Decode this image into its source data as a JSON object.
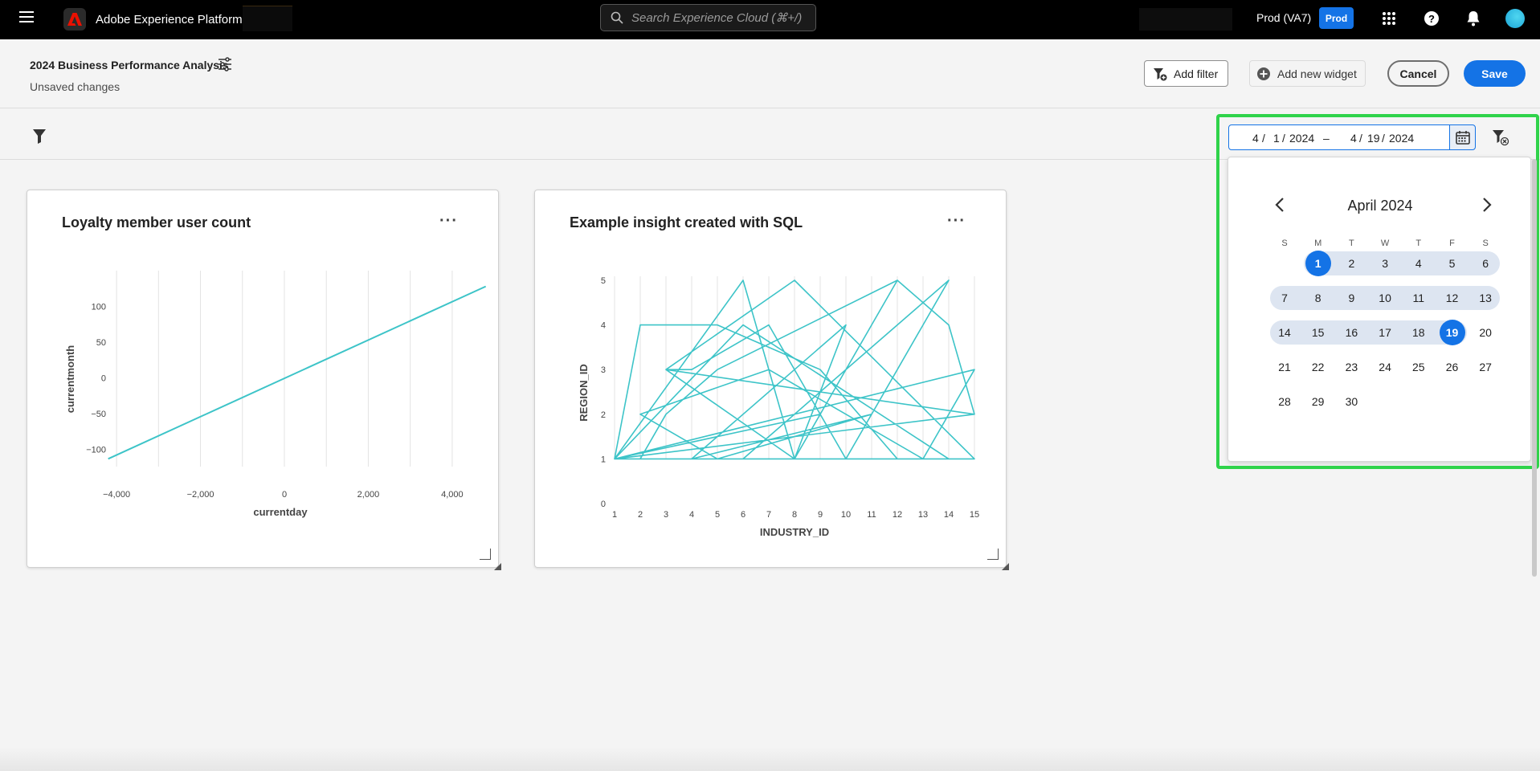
{
  "app": {
    "name": "Adobe Experience Platform",
    "search_placeholder": "Search Experience Cloud (⌘+/)",
    "org": "Prod (VA7)",
    "sandbox_badge": "Prod"
  },
  "header": {
    "title": "2024 Business Performance Analysis",
    "status": "Unsaved changes",
    "add_filter_label": "Add filter",
    "add_widget_label": "Add new widget",
    "cancel_label": "Cancel",
    "save_label": "Save"
  },
  "date_range": {
    "start": {
      "month": "4",
      "day": "1",
      "year": "2024"
    },
    "separator": "–",
    "end": {
      "month": "4",
      "day": "19",
      "year": "2024"
    }
  },
  "calendar": {
    "month_label": "April 2024",
    "weekdays": [
      "S",
      "M",
      "T",
      "W",
      "T",
      "F",
      "S"
    ],
    "first_weekday_index": 1,
    "days_in_month": 30,
    "range_start": 1,
    "range_end": 19,
    "highlight_color": "#2fd34a",
    "accent_color": "#1473e6"
  },
  "widgets": [
    {
      "title": "Loyalty member user count",
      "more_label": "···",
      "chart_data": {
        "type": "line",
        "title": "Loyalty member user count",
        "xlabel": "currentday",
        "ylabel": "currentmonth",
        "xlim": [
          -4500,
          4500
        ],
        "ylim": [
          -125,
          150
        ],
        "x_ticks": [
          "−4,000",
          "−2,000",
          "0",
          "2,000",
          "4,000"
        ],
        "x_tick_values": [
          -4000,
          -2000,
          0,
          2000,
          4000
        ],
        "y_ticks": [
          "100",
          "50",
          "0",
          "−50",
          "−100"
        ],
        "y_tick_values": [
          100,
          50,
          0,
          -50,
          -100
        ],
        "grid": true,
        "color": "#3dc4c8",
        "series": [
          {
            "x": [
              -4200,
              4800
            ],
            "y": [
              -113,
              128
            ]
          }
        ]
      }
    },
    {
      "title": "Example insight created with SQL",
      "more_label": "···",
      "chart_data": {
        "type": "line",
        "title": "Example insight created with SQL",
        "xlabel": "INDUSTRY_ID",
        "ylabel": "REGION_ID",
        "xlim": [
          1,
          15
        ],
        "ylim": [
          0,
          5
        ],
        "x_ticks": [
          "1",
          "2",
          "3",
          "4",
          "5",
          "6",
          "7",
          "8",
          "9",
          "10",
          "11",
          "12",
          "13",
          "14",
          "15"
        ],
        "y_ticks": [
          "5",
          "4",
          "3",
          "2",
          "1",
          "0"
        ],
        "grid": true,
        "color": "#3dc4c8",
        "series": [
          {
            "x": [
              1,
              6,
              8,
              12,
              14,
              15,
              1,
              2,
              5,
              9,
              12,
              15,
              8,
              3,
              4,
              7,
              10,
              13,
              14,
              6,
              2,
              3,
              5,
              12,
              9,
              1,
              6,
              14,
              8,
              10,
              4,
              11,
              5,
              2,
              7,
              13,
              15,
              1,
              8,
              3,
              15
            ],
            "y": [
              1,
              5,
              1,
              5,
              4,
              2,
              1,
              4,
              4,
              3,
              1,
              1,
              5,
              3,
              3,
              4,
              1,
              4,
              5,
              1,
              1,
              2,
              3,
              5,
              2,
              1,
              4,
              1,
              1,
              4,
              1,
              2,
              1,
              2,
              3,
              1,
              3,
              1,
              1,
              3,
              2
            ]
          }
        ]
      }
    }
  ]
}
